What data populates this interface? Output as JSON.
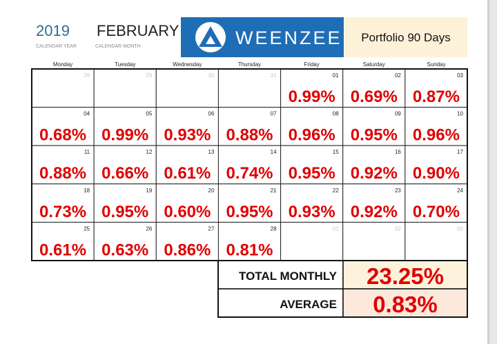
{
  "header": {
    "year": "2019",
    "year_caption": "CALENDAR YEAR",
    "month": "FEBRUARY",
    "month_caption": "CALENDAR MONTH",
    "logo": "WEENZEE",
    "portfolio": "Portfolio 90 Days"
  },
  "weekdays": [
    "Monday",
    "Tuesday",
    "Wednesday",
    "Thursday",
    "Friday",
    "Saturday",
    "Sunday"
  ],
  "weeks": [
    [
      {
        "day": "28",
        "in_month": false
      },
      {
        "day": "29",
        "in_month": false
      },
      {
        "day": "30",
        "in_month": false
      },
      {
        "day": "31",
        "in_month": false
      },
      {
        "day": "01",
        "value": "0.99%"
      },
      {
        "day": "02",
        "value": "0.69%"
      },
      {
        "day": "03",
        "value": "0.87%"
      }
    ],
    [
      {
        "day": "04",
        "value": "0.68%"
      },
      {
        "day": "05",
        "value": "0.99%"
      },
      {
        "day": "06",
        "value": "0.93%"
      },
      {
        "day": "07",
        "value": "0.88%"
      },
      {
        "day": "08",
        "value": "0.96%"
      },
      {
        "day": "09",
        "value": "0.95%"
      },
      {
        "day": "10",
        "value": "0.96%"
      }
    ],
    [
      {
        "day": "11",
        "value": "0.88%"
      },
      {
        "day": "12",
        "value": "0.66%"
      },
      {
        "day": "13",
        "value": "0.61%"
      },
      {
        "day": "14",
        "value": "0.74%"
      },
      {
        "day": "15",
        "value": "0.95%"
      },
      {
        "day": "16",
        "value": "0.92%"
      },
      {
        "day": "17",
        "value": "0.90%"
      }
    ],
    [
      {
        "day": "18",
        "value": "0.73%"
      },
      {
        "day": "19",
        "value": "0.95%"
      },
      {
        "day": "20",
        "value": "0.60%"
      },
      {
        "day": "21",
        "value": "0.95%"
      },
      {
        "day": "22",
        "value": "0.93%"
      },
      {
        "day": "23",
        "value": "0.92%"
      },
      {
        "day": "24",
        "value": "0.70%"
      }
    ],
    [
      {
        "day": "25",
        "value": "0.61%"
      },
      {
        "day": "26",
        "value": "0.63%"
      },
      {
        "day": "27",
        "value": "0.86%"
      },
      {
        "day": "28",
        "value": "0.81%"
      },
      {
        "day": "01",
        "in_month": false
      },
      {
        "day": "02",
        "in_month": false
      },
      {
        "day": "03",
        "in_month": false
      }
    ]
  ],
  "summary": [
    {
      "label": "TOTAL MONTHLY",
      "value": "23.25%"
    },
    {
      "label": "AVERAGE",
      "value": "0.83%"
    }
  ]
}
